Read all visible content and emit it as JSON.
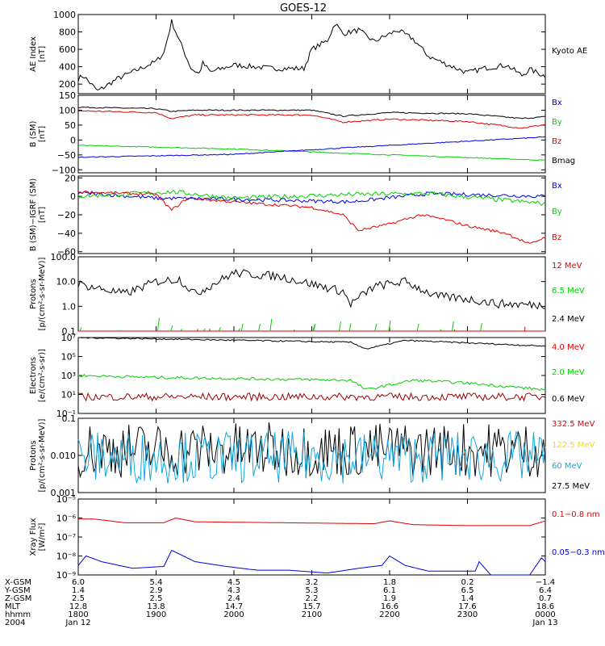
{
  "title": "GOES-12",
  "colors": {
    "black": "#000000",
    "red": "#e00000",
    "green": "#00d000",
    "blue": "#0000e0",
    "darkred": "#a00000",
    "yellow": "#f0e000",
    "cyan": "#10a8e0"
  },
  "chart_data": [
    {
      "type": "line",
      "ylabel": [
        "AE Index",
        "[nT]"
      ],
      "ylim": [
        90,
        1000
      ],
      "ticks": [
        "200",
        "400",
        "600",
        "800",
        "1000"
      ],
      "tick_values": [
        200,
        400,
        600,
        800,
        1000
      ],
      "legend": [
        {
          "label": "Kyoto AE",
          "color": "black"
        }
      ],
      "series": [
        {
          "name": "Kyoto AE",
          "color": "black",
          "kind": "ae"
        }
      ]
    },
    {
      "type": "line",
      "ylabel": [
        "B (SM)",
        "[nT]"
      ],
      "ylim": [
        -110,
        150
      ],
      "ticks": [
        "150",
        "100",
        "50",
        "0",
        "−50",
        "−100"
      ],
      "tick_values": [
        150,
        100,
        50,
        0,
        -50,
        -100
      ],
      "legend": [
        {
          "label": "Bx",
          "color": "blue"
        },
        {
          "label": "By",
          "color": "green"
        },
        {
          "label": "Bz",
          "color": "red"
        },
        {
          "label": "Bmag",
          "color": "black"
        }
      ],
      "series": [
        {
          "name": "Bmag",
          "color": "black",
          "kind": "bmag"
        },
        {
          "name": "Bz",
          "color": "red",
          "kind": "bz"
        },
        {
          "name": "By",
          "color": "green",
          "kind": "by"
        },
        {
          "name": "Bx",
          "color": "blue",
          "kind": "bx"
        }
      ]
    },
    {
      "type": "line",
      "ylabel": [
        "B (SM)−IGRF (SM)",
        "[nT]"
      ],
      "ylim": [
        -62,
        22
      ],
      "ticks": [
        "20",
        "0",
        "−20",
        "−40",
        "−60"
      ],
      "tick_values": [
        20,
        0,
        -20,
        -40,
        -60
      ],
      "legend": [
        {
          "label": "Bx",
          "color": "blue"
        },
        {
          "label": "By",
          "color": "green"
        },
        {
          "label": "Bz",
          "color": "red"
        }
      ],
      "series": [
        {
          "name": "Bx",
          "color": "blue",
          "kind": "dbx"
        },
        {
          "name": "By",
          "color": "green",
          "kind": "dby"
        },
        {
          "name": "Bz",
          "color": "red",
          "kind": "dbz"
        }
      ]
    },
    {
      "type": "line",
      "log": true,
      "ylabel": [
        "Protons",
        "[p/(cm²-s-sr-MeV)]"
      ],
      "ylim": [
        0.1,
        100
      ],
      "ticks": [
        "100.0",
        "10.0",
        "1.0",
        "0.1"
      ],
      "tick_values": [
        100,
        10,
        1,
        0.1
      ],
      "legend": [
        {
          "label": "12 MeV",
          "color": "red"
        },
        {
          "label": "6.5 MeV",
          "color": "green"
        },
        {
          "label": "2.4 MeV",
          "color": "black"
        }
      ],
      "series": [
        {
          "name": "2.4 MeV",
          "color": "black",
          "kind": "p24"
        },
        {
          "name": "6.5 MeV",
          "color": "green",
          "kind": "p65"
        },
        {
          "name": "12 MeV",
          "color": "red",
          "kind": "p12"
        }
      ]
    },
    {
      "type": "line",
      "log": true,
      "ylabel": [
        "Electrons",
        "[e/(cm²-s-sr)]"
      ],
      "ylim": [
        0.1,
        10000000
      ],
      "ticks": [
        "10⁷",
        "10⁵",
        "10³",
        "10¹",
        "10⁻¹"
      ],
      "tick_values": [
        10000000,
        100000,
        1000,
        10,
        0.1
      ],
      "legend": [
        {
          "label": "4.0 MeV",
          "color": "red"
        },
        {
          "label": "2.0 MeV",
          "color": "green"
        },
        {
          "label": "0.6 MeV",
          "color": "black"
        }
      ],
      "series": [
        {
          "name": "0.6 MeV",
          "color": "black",
          "kind": "e06"
        },
        {
          "name": "2.0 MeV",
          "color": "green",
          "kind": "e20"
        },
        {
          "name": "4.0 MeV",
          "color": "darkred",
          "kind": "e40"
        }
      ]
    },
    {
      "type": "line",
      "log": true,
      "ylabel": [
        "Protons",
        "[p/(cm²-s-sr-MeV)]"
      ],
      "ylim": [
        0.001,
        0.1
      ],
      "ticks": [
        "0.001",
        "0.010",
        "0.1"
      ],
      "tick_values": [
        0.001,
        0.01,
        0.1
      ],
      "legend": [
        {
          "label": "332.5 MeV",
          "color": "red"
        },
        {
          "label": "122.5 MeV",
          "color": "yellow"
        },
        {
          "label": "60 MeV",
          "color": "cyan"
        },
        {
          "label": "27.5 MeV",
          "color": "black"
        }
      ],
      "series": [
        {
          "name": "27.5 MeV",
          "color": "black",
          "kind": "h275"
        },
        {
          "name": "60 MeV",
          "color": "cyan",
          "kind": "h60"
        }
      ]
    },
    {
      "type": "line",
      "log": true,
      "ylabel": [
        "Xray Flux",
        "[W/m²]"
      ],
      "ylim": [
        1e-09,
        1e-05
      ],
      "ticks": [
        "10⁻⁵",
        "10⁻⁶",
        "10⁻⁷",
        "10⁻⁸",
        "10⁻⁹"
      ],
      "tick_values": [
        1e-05,
        1e-06,
        1e-07,
        1e-08,
        1e-09
      ],
      "legend": [
        {
          "label": "0.1−0.8 nm",
          "color": "red"
        },
        {
          "label": "0.05−0.3 nm",
          "color": "blue"
        }
      ],
      "series": [
        {
          "name": "0.1−0.8 nm",
          "color": "red",
          "kind": "xl"
        },
        {
          "name": "0.05−0.3 nm",
          "color": "blue",
          "kind": "xs"
        }
      ]
    }
  ],
  "x_axis": {
    "row_labels": [
      "X-GSM",
      "Y-GSM",
      "Z-GSM",
      "MLT",
      "hhmm",
      "2004"
    ],
    "ticks": [
      {
        "t": 0,
        "values": [
          "6.0",
          "1.4",
          "2.5",
          "12.8",
          "1800",
          "Jan 12"
        ]
      },
      {
        "t": 1,
        "values": [
          "5.4",
          "2.9",
          "2.5",
          "13.8",
          "1900",
          ""
        ]
      },
      {
        "t": 2,
        "values": [
          "4.5",
          "4.3",
          "2.4",
          "14.7",
          "2000",
          ""
        ]
      },
      {
        "t": 3,
        "values": [
          "3.2",
          "5.3",
          "2.2",
          "15.7",
          "2100",
          ""
        ]
      },
      {
        "t": 4,
        "values": [
          "1.8",
          "6.1",
          "1.9",
          "16.6",
          "2200",
          ""
        ]
      },
      {
        "t": 5,
        "values": [
          "0.2",
          "6.5",
          "1.4",
          "17.6",
          "2300",
          ""
        ]
      },
      {
        "t": 6,
        "values": [
          "−1.4",
          "6.4",
          "0.7",
          "18.6",
          "0000",
          "Jan 13"
        ]
      }
    ]
  }
}
